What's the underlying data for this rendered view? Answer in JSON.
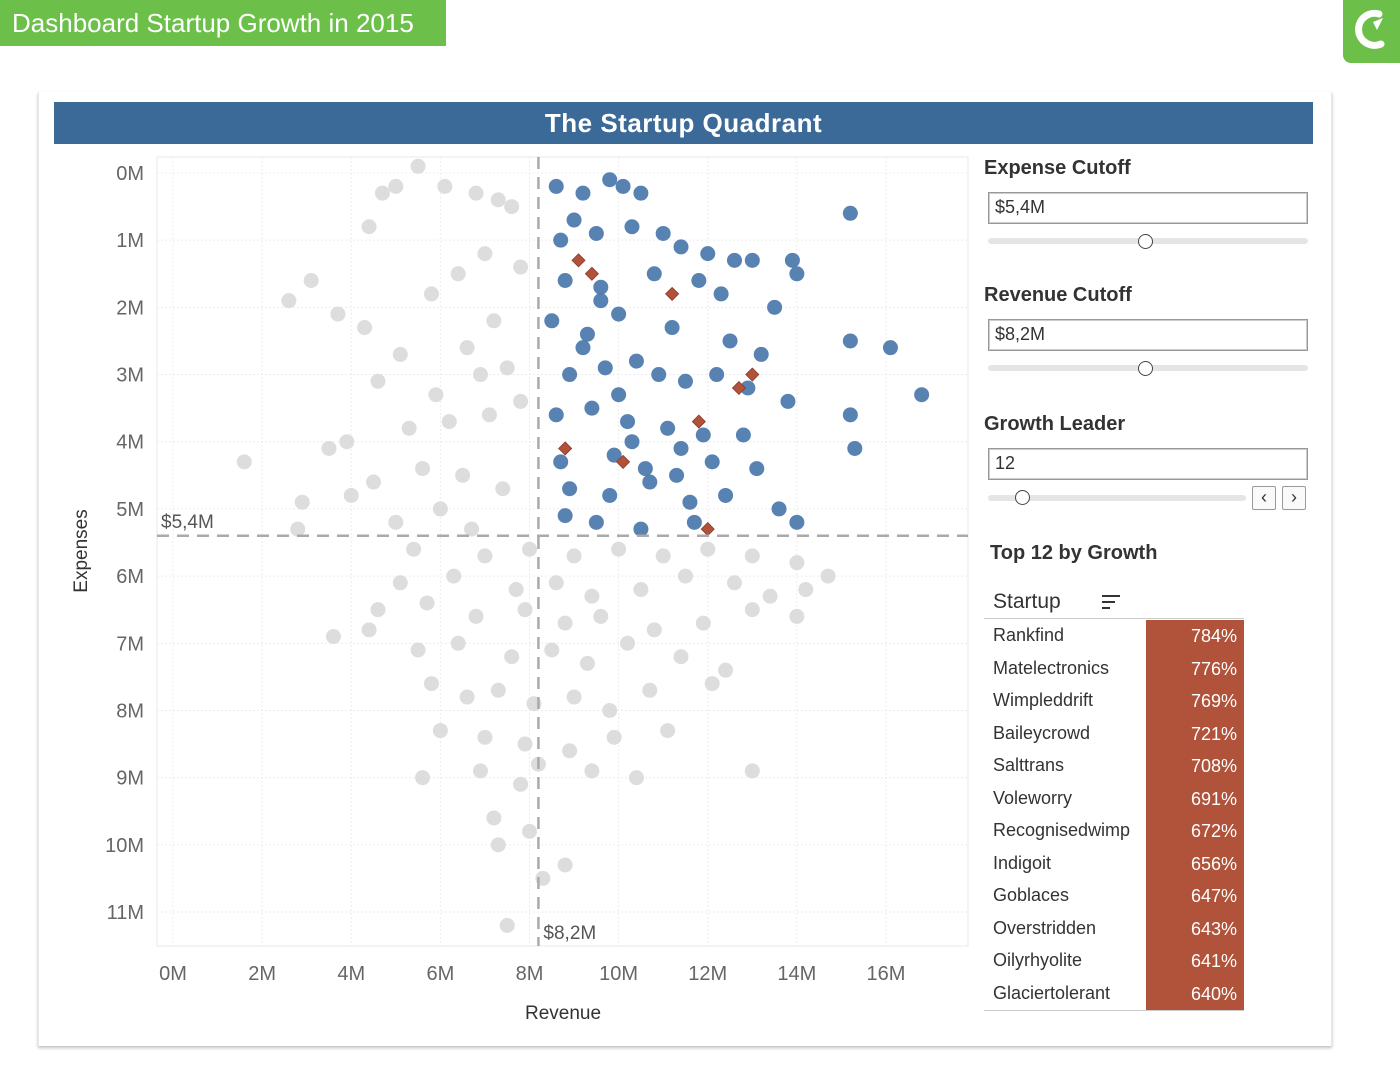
{
  "page": {
    "title": "Dashboard Startup Growth in 2015",
    "logo_icon": "c-logo-icon",
    "brand_color": "#6cc04a",
    "header_color": "#3c6a98"
  },
  "chart_data": {
    "type": "scatter",
    "title": "The Startup Quadrant",
    "xlabel": "Revenue",
    "ylabel": "Expenses",
    "xlim": [
      0,
      17
    ],
    "ylim": [
      11.4,
      -0.1
    ],
    "x_ticks": [
      "0M",
      "2M",
      "4M",
      "6M",
      "8M",
      "10M",
      "12M",
      "14M",
      "16M"
    ],
    "y_ticks": [
      "0M",
      "1M",
      "2M",
      "3M",
      "4M",
      "5M",
      "6M",
      "7M",
      "8M",
      "9M",
      "10M",
      "11M"
    ],
    "y_reversed": true,
    "grid": true,
    "reference_lines": [
      {
        "axis": "y",
        "value": 5.4,
        "label": "$5,4M"
      },
      {
        "axis": "x",
        "value": 8.2,
        "label": "$8,2M"
      }
    ],
    "colors": {
      "quadrant": "#4a77aa",
      "other": "#d9d9d9",
      "leader": "#b0533a"
    },
    "series": [
      {
        "name": "",
        "marker": "circle",
        "color": "#4a77aa",
        "x": [
          8.6,
          9.2,
          9.8,
          10.1,
          10.5,
          9.0,
          8.7,
          9.5,
          10.3,
          11.0,
          11.4,
          12.0,
          12.6,
          13.0,
          13.9,
          14.0,
          8.8,
          9.6,
          10.8,
          11.8,
          12.3,
          13.5,
          15.2,
          8.5,
          9.3,
          10.0,
          11.2,
          12.5,
          13.2,
          15.2,
          16.1,
          8.9,
          9.7,
          10.4,
          11.5,
          12.2,
          12.9,
          13.8,
          16.8,
          8.6,
          9.4,
          10.2,
          11.1,
          11.9,
          12.8,
          15.2,
          15.3,
          8.7,
          9.9,
          10.6,
          11.3,
          12.1,
          13.1,
          8.9,
          9.8,
          10.7,
          11.6,
          12.4,
          13.6,
          14.0,
          8.8,
          9.5,
          10.5,
          11.7,
          9.2,
          10.0,
          10.9,
          11.4,
          9.6,
          10.3
        ],
        "y": [
          0.2,
          0.3,
          0.1,
          0.2,
          0.3,
          0.7,
          1.0,
          0.9,
          0.8,
          0.9,
          1.1,
          1.2,
          1.3,
          1.3,
          1.3,
          1.5,
          1.6,
          1.7,
          1.5,
          1.6,
          1.8,
          2.0,
          0.6,
          2.2,
          2.4,
          2.1,
          2.3,
          2.5,
          2.7,
          2.5,
          2.6,
          3.0,
          2.9,
          2.8,
          3.1,
          3.0,
          3.2,
          3.4,
          3.3,
          3.6,
          3.5,
          3.7,
          3.8,
          3.9,
          3.9,
          3.6,
          4.1,
          4.3,
          4.2,
          4.4,
          4.5,
          4.3,
          4.4,
          4.7,
          4.8,
          4.6,
          4.9,
          4.8,
          5.0,
          5.2,
          5.1,
          5.2,
          5.3,
          5.2,
          2.6,
          3.3,
          3.0,
          4.1,
          1.9,
          4.0
        ]
      },
      {
        "name": "",
        "marker": "circle",
        "color": "#d9d9d9",
        "x": [
          5.5,
          4.7,
          5.0,
          6.1,
          6.8,
          7.3,
          7.6,
          4.4,
          7.0,
          3.1,
          2.6,
          5.8,
          6.4,
          7.8,
          4.3,
          3.7,
          5.1,
          6.6,
          7.2,
          4.6,
          5.9,
          6.9,
          7.5,
          1.6,
          3.5,
          3.9,
          5.3,
          6.2,
          7.1,
          7.8,
          4.5,
          5.6,
          6.5,
          2.9,
          2.8,
          4.0,
          6.0,
          7.4,
          5.0,
          6.7,
          5.4,
          7.0,
          8.0,
          9.0,
          10.0,
          11.0,
          12.0,
          13.0,
          14.0,
          14.7,
          5.1,
          6.3,
          7.7,
          8.6,
          9.4,
          10.5,
          11.5,
          12.6,
          13.4,
          14.2,
          4.6,
          5.7,
          6.8,
          7.9,
          8.8,
          9.6,
          10.8,
          11.9,
          13.0,
          14.0,
          3.6,
          4.4,
          5.5,
          6.4,
          7.6,
          8.5,
          9.3,
          10.2,
          11.4,
          12.4,
          5.8,
          6.6,
          7.3,
          8.1,
          9.0,
          9.8,
          10.7,
          12.1,
          6.0,
          7.0,
          7.9,
          8.9,
          9.9,
          11.1,
          5.6,
          6.9,
          7.8,
          8.2,
          9.4,
          10.4,
          13.0,
          7.2,
          8.0,
          8.8,
          7.5,
          7.3,
          8.3
        ],
        "y": [
          -0.1,
          0.3,
          0.2,
          0.2,
          0.3,
          0.4,
          0.5,
          0.8,
          1.2,
          1.6,
          1.9,
          1.8,
          1.5,
          1.4,
          2.3,
          2.1,
          2.7,
          2.6,
          2.2,
          3.1,
          3.3,
          3.0,
          2.9,
          4.3,
          4.1,
          4.0,
          3.8,
          3.7,
          3.6,
          3.4,
          4.6,
          4.4,
          4.5,
          4.9,
          5.3,
          4.8,
          5.0,
          4.7,
          5.2,
          5.3,
          5.6,
          5.7,
          5.6,
          5.7,
          5.6,
          5.7,
          5.6,
          5.7,
          5.8,
          6.0,
          6.1,
          6.0,
          6.2,
          6.1,
          6.3,
          6.2,
          6.0,
          6.1,
          6.3,
          6.2,
          6.5,
          6.4,
          6.6,
          6.5,
          6.7,
          6.6,
          6.8,
          6.7,
          6.5,
          6.6,
          6.9,
          6.8,
          7.1,
          7.0,
          7.2,
          7.1,
          7.3,
          7.0,
          7.2,
          7.4,
          7.6,
          7.8,
          7.7,
          7.9,
          7.8,
          8.0,
          7.7,
          7.6,
          8.3,
          8.4,
          8.5,
          8.6,
          8.4,
          8.3,
          9.0,
          8.9,
          9.1,
          8.8,
          8.9,
          9.0,
          8.9,
          9.6,
          9.8,
          10.3,
          11.2,
          10.0,
          10.5
        ]
      },
      {
        "name": "",
        "marker": "diamond",
        "color": "#b0533a",
        "x": [
          9.1,
          9.4,
          11.2,
          12.7,
          13.0,
          11.8,
          8.8,
          10.1,
          12.0
        ],
        "y": [
          1.3,
          1.5,
          1.8,
          3.2,
          3.0,
          3.7,
          4.1,
          4.3,
          5.3
        ]
      }
    ]
  },
  "controls": {
    "expense_cutoff": {
      "label": "Expense Cutoff",
      "value": "$5,4M",
      "fraction": 0.49
    },
    "revenue_cutoff": {
      "label": "Revenue Cutoff",
      "value": "$8,2M",
      "fraction": 0.49
    },
    "growth_leader": {
      "label": "Growth Leader",
      "value": "12",
      "fraction": 0.13,
      "prev_icon": "chevron-left-icon",
      "next_icon": "chevron-right-icon"
    }
  },
  "table": {
    "title": "Top 12 by Growth",
    "column": "Startup",
    "sort_icon": "sort-icon",
    "rows": [
      {
        "name": "Rankfind",
        "value": "784%"
      },
      {
        "name": "Matelectronics",
        "value": "776%"
      },
      {
        "name": "Wimpleddrift",
        "value": "769%"
      },
      {
        "name": "Baileycrowd",
        "value": "721%"
      },
      {
        "name": "Salttrans",
        "value": "708%"
      },
      {
        "name": "Voleworry",
        "value": "691%"
      },
      {
        "name": "Recognisedwimp",
        "value": "672%"
      },
      {
        "name": "Indigoit",
        "value": "656%"
      },
      {
        "name": "Goblaces",
        "value": "647%"
      },
      {
        "name": "Overstridden",
        "value": "643%"
      },
      {
        "name": "Oilyrhyolite",
        "value": "641%"
      },
      {
        "name": "Glaciertolerant",
        "value": "640%"
      }
    ]
  }
}
